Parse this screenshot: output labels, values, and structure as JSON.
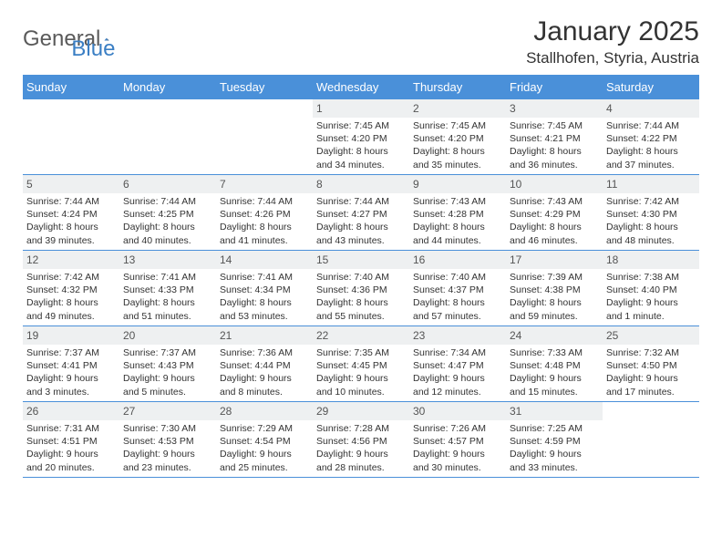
{
  "logo": {
    "text_general": "General",
    "text_blue": "Blue"
  },
  "title": "January 2025",
  "location": "Stallhofen, Styria, Austria",
  "colors": {
    "header_bg": "#4a90d9",
    "header_text": "#ffffff",
    "daynum_bg": "#eef0f1",
    "daynum_text": "#555555",
    "body_text": "#333333",
    "logo_gray": "#5a5a5a",
    "logo_blue": "#3b7fc4",
    "border": "#4a90d9"
  },
  "day_headers": [
    "Sunday",
    "Monday",
    "Tuesday",
    "Wednesday",
    "Thursday",
    "Friday",
    "Saturday"
  ],
  "weeks": [
    [
      {
        "n": "",
        "empty": true
      },
      {
        "n": "",
        "empty": true
      },
      {
        "n": "",
        "empty": true
      },
      {
        "n": "1",
        "sunrise": "Sunrise: 7:45 AM",
        "sunset": "Sunset: 4:20 PM",
        "daylight1": "Daylight: 8 hours",
        "daylight2": "and 34 minutes."
      },
      {
        "n": "2",
        "sunrise": "Sunrise: 7:45 AM",
        "sunset": "Sunset: 4:20 PM",
        "daylight1": "Daylight: 8 hours",
        "daylight2": "and 35 minutes."
      },
      {
        "n": "3",
        "sunrise": "Sunrise: 7:45 AM",
        "sunset": "Sunset: 4:21 PM",
        "daylight1": "Daylight: 8 hours",
        "daylight2": "and 36 minutes."
      },
      {
        "n": "4",
        "sunrise": "Sunrise: 7:44 AM",
        "sunset": "Sunset: 4:22 PM",
        "daylight1": "Daylight: 8 hours",
        "daylight2": "and 37 minutes."
      }
    ],
    [
      {
        "n": "5",
        "sunrise": "Sunrise: 7:44 AM",
        "sunset": "Sunset: 4:24 PM",
        "daylight1": "Daylight: 8 hours",
        "daylight2": "and 39 minutes."
      },
      {
        "n": "6",
        "sunrise": "Sunrise: 7:44 AM",
        "sunset": "Sunset: 4:25 PM",
        "daylight1": "Daylight: 8 hours",
        "daylight2": "and 40 minutes."
      },
      {
        "n": "7",
        "sunrise": "Sunrise: 7:44 AM",
        "sunset": "Sunset: 4:26 PM",
        "daylight1": "Daylight: 8 hours",
        "daylight2": "and 41 minutes."
      },
      {
        "n": "8",
        "sunrise": "Sunrise: 7:44 AM",
        "sunset": "Sunset: 4:27 PM",
        "daylight1": "Daylight: 8 hours",
        "daylight2": "and 43 minutes."
      },
      {
        "n": "9",
        "sunrise": "Sunrise: 7:43 AM",
        "sunset": "Sunset: 4:28 PM",
        "daylight1": "Daylight: 8 hours",
        "daylight2": "and 44 minutes."
      },
      {
        "n": "10",
        "sunrise": "Sunrise: 7:43 AM",
        "sunset": "Sunset: 4:29 PM",
        "daylight1": "Daylight: 8 hours",
        "daylight2": "and 46 minutes."
      },
      {
        "n": "11",
        "sunrise": "Sunrise: 7:42 AM",
        "sunset": "Sunset: 4:30 PM",
        "daylight1": "Daylight: 8 hours",
        "daylight2": "and 48 minutes."
      }
    ],
    [
      {
        "n": "12",
        "sunrise": "Sunrise: 7:42 AM",
        "sunset": "Sunset: 4:32 PM",
        "daylight1": "Daylight: 8 hours",
        "daylight2": "and 49 minutes."
      },
      {
        "n": "13",
        "sunrise": "Sunrise: 7:41 AM",
        "sunset": "Sunset: 4:33 PM",
        "daylight1": "Daylight: 8 hours",
        "daylight2": "and 51 minutes."
      },
      {
        "n": "14",
        "sunrise": "Sunrise: 7:41 AM",
        "sunset": "Sunset: 4:34 PM",
        "daylight1": "Daylight: 8 hours",
        "daylight2": "and 53 minutes."
      },
      {
        "n": "15",
        "sunrise": "Sunrise: 7:40 AM",
        "sunset": "Sunset: 4:36 PM",
        "daylight1": "Daylight: 8 hours",
        "daylight2": "and 55 minutes."
      },
      {
        "n": "16",
        "sunrise": "Sunrise: 7:40 AM",
        "sunset": "Sunset: 4:37 PM",
        "daylight1": "Daylight: 8 hours",
        "daylight2": "and 57 minutes."
      },
      {
        "n": "17",
        "sunrise": "Sunrise: 7:39 AM",
        "sunset": "Sunset: 4:38 PM",
        "daylight1": "Daylight: 8 hours",
        "daylight2": "and 59 minutes."
      },
      {
        "n": "18",
        "sunrise": "Sunrise: 7:38 AM",
        "sunset": "Sunset: 4:40 PM",
        "daylight1": "Daylight: 9 hours",
        "daylight2": "and 1 minute."
      }
    ],
    [
      {
        "n": "19",
        "sunrise": "Sunrise: 7:37 AM",
        "sunset": "Sunset: 4:41 PM",
        "daylight1": "Daylight: 9 hours",
        "daylight2": "and 3 minutes."
      },
      {
        "n": "20",
        "sunrise": "Sunrise: 7:37 AM",
        "sunset": "Sunset: 4:43 PM",
        "daylight1": "Daylight: 9 hours",
        "daylight2": "and 5 minutes."
      },
      {
        "n": "21",
        "sunrise": "Sunrise: 7:36 AM",
        "sunset": "Sunset: 4:44 PM",
        "daylight1": "Daylight: 9 hours",
        "daylight2": "and 8 minutes."
      },
      {
        "n": "22",
        "sunrise": "Sunrise: 7:35 AM",
        "sunset": "Sunset: 4:45 PM",
        "daylight1": "Daylight: 9 hours",
        "daylight2": "and 10 minutes."
      },
      {
        "n": "23",
        "sunrise": "Sunrise: 7:34 AM",
        "sunset": "Sunset: 4:47 PM",
        "daylight1": "Daylight: 9 hours",
        "daylight2": "and 12 minutes."
      },
      {
        "n": "24",
        "sunrise": "Sunrise: 7:33 AM",
        "sunset": "Sunset: 4:48 PM",
        "daylight1": "Daylight: 9 hours",
        "daylight2": "and 15 minutes."
      },
      {
        "n": "25",
        "sunrise": "Sunrise: 7:32 AM",
        "sunset": "Sunset: 4:50 PM",
        "daylight1": "Daylight: 9 hours",
        "daylight2": "and 17 minutes."
      }
    ],
    [
      {
        "n": "26",
        "sunrise": "Sunrise: 7:31 AM",
        "sunset": "Sunset: 4:51 PM",
        "daylight1": "Daylight: 9 hours",
        "daylight2": "and 20 minutes."
      },
      {
        "n": "27",
        "sunrise": "Sunrise: 7:30 AM",
        "sunset": "Sunset: 4:53 PM",
        "daylight1": "Daylight: 9 hours",
        "daylight2": "and 23 minutes."
      },
      {
        "n": "28",
        "sunrise": "Sunrise: 7:29 AM",
        "sunset": "Sunset: 4:54 PM",
        "daylight1": "Daylight: 9 hours",
        "daylight2": "and 25 minutes."
      },
      {
        "n": "29",
        "sunrise": "Sunrise: 7:28 AM",
        "sunset": "Sunset: 4:56 PM",
        "daylight1": "Daylight: 9 hours",
        "daylight2": "and 28 minutes."
      },
      {
        "n": "30",
        "sunrise": "Sunrise: 7:26 AM",
        "sunset": "Sunset: 4:57 PM",
        "daylight1": "Daylight: 9 hours",
        "daylight2": "and 30 minutes."
      },
      {
        "n": "31",
        "sunrise": "Sunrise: 7:25 AM",
        "sunset": "Sunset: 4:59 PM",
        "daylight1": "Daylight: 9 hours",
        "daylight2": "and 33 minutes."
      },
      {
        "n": "",
        "empty": true
      }
    ]
  ]
}
